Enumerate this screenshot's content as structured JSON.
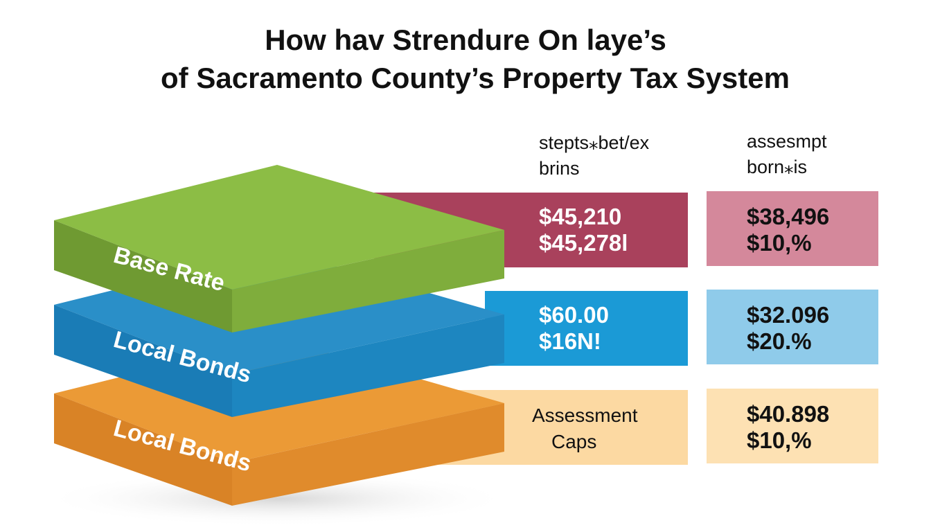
{
  "header": {
    "title_lines": [
      "How hav Strendure On laye’s",
      "of Sacramento County’s Property Tax System"
    ]
  },
  "columns": [
    {
      "label_lines": [
        "stepts⁎bet/ex",
        "brins"
      ]
    },
    {
      "label_lines": [
        "assesmpt",
        "born⁎is"
      ]
    }
  ],
  "layers": [
    {
      "label": "Base Rate",
      "cells": [
        [
          "$45,210",
          "$45,278l"
        ],
        [
          "$38,496",
          "$10,%"
        ]
      ]
    },
    {
      "label": "Local Bonds",
      "cells": [
        [
          "$60.00",
          "$16N!"
        ],
        [
          "$32.096",
          "$20.%"
        ]
      ]
    },
    {
      "label": "Local Bonds",
      "cells": [
        [
          "Assessment",
          "Caps"
        ],
        [
          "$40.898",
          "$10,%"
        ]
      ]
    }
  ]
}
